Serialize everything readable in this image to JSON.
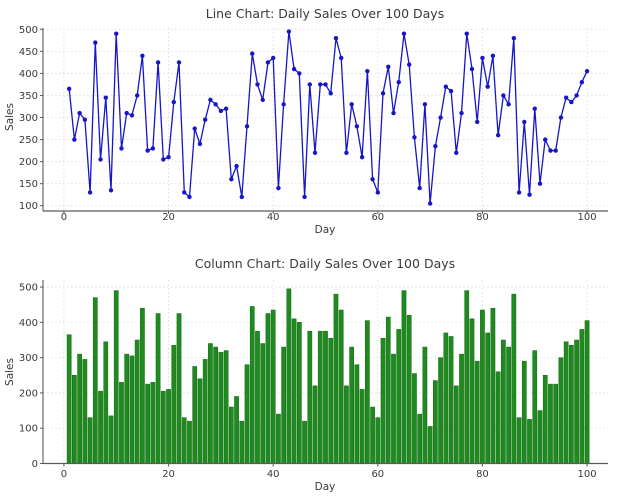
{
  "figure": {
    "background": "#ffffff",
    "text_color": "#3a3a3a",
    "grid_color": "#d9d9d9",
    "spine_color": "#5a5a5a"
  },
  "chart_data": [
    {
      "type": "line",
      "title": "Line Chart: Daily Sales Over 100 Days",
      "xlabel": "Day",
      "ylabel": "Sales",
      "series_color": "#1616c8",
      "marker": "circle",
      "grid": true,
      "legend": "none",
      "xticks": [
        0,
        20,
        40,
        60,
        80,
        100
      ],
      "yticks": [
        100,
        150,
        200,
        250,
        300,
        350,
        400,
        450,
        500
      ],
      "xlim": [
        -4,
        104
      ],
      "ylim": [
        88,
        503
      ],
      "x": [
        1,
        2,
        3,
        4,
        5,
        6,
        7,
        8,
        9,
        10,
        11,
        12,
        13,
        14,
        15,
        16,
        17,
        18,
        19,
        20,
        21,
        22,
        23,
        24,
        25,
        26,
        27,
        28,
        29,
        30,
        31,
        32,
        33,
        34,
        35,
        36,
        37,
        38,
        39,
        40,
        41,
        42,
        43,
        44,
        45,
        46,
        47,
        48,
        49,
        50,
        51,
        52,
        53,
        54,
        55,
        56,
        57,
        58,
        59,
        60,
        61,
        62,
        63,
        64,
        65,
        66,
        67,
        68,
        69,
        70,
        71,
        72,
        73,
        74,
        75,
        76,
        77,
        78,
        79,
        80,
        81,
        82,
        83,
        84,
        85,
        86,
        87,
        88,
        89,
        90,
        91,
        92,
        93,
        94,
        95,
        96,
        97,
        98,
        99,
        100
      ],
      "values": [
        365,
        250,
        310,
        295,
        130,
        470,
        205,
        345,
        135,
        490,
        230,
        310,
        305,
        350,
        440,
        225,
        230,
        425,
        205,
        210,
        335,
        425,
        130,
        120,
        275,
        240,
        295,
        340,
        330,
        315,
        320,
        160,
        190,
        120,
        280,
        445,
        375,
        340,
        425,
        435,
        140,
        330,
        495,
        410,
        400,
        120,
        375,
        220,
        375,
        375,
        355,
        480,
        435,
        220,
        330,
        280,
        210,
        405,
        160,
        130,
        355,
        415,
        310,
        380,
        490,
        420,
        255,
        140,
        330,
        105,
        235,
        300,
        370,
        360,
        220,
        310,
        490,
        410,
        290,
        435,
        370,
        440,
        260,
        350,
        330,
        480,
        130,
        290,
        125,
        320,
        150,
        250,
        225,
        225,
        300,
        345,
        335,
        350,
        380,
        405
      ]
    },
    {
      "type": "bar",
      "title": "Column Chart: Daily Sales Over 100 Days",
      "xlabel": "Day",
      "ylabel": "Sales",
      "series_color": "#1f8b1f",
      "bar_edge_color": "#156815",
      "grid": true,
      "legend": "none",
      "xticks": [
        0,
        20,
        40,
        60,
        80,
        100
      ],
      "yticks": [
        0,
        100,
        200,
        300,
        400,
        500
      ],
      "xlim": [
        -4,
        104
      ],
      "ylim": [
        0,
        520
      ],
      "x": [
        1,
        2,
        3,
        4,
        5,
        6,
        7,
        8,
        9,
        10,
        11,
        12,
        13,
        14,
        15,
        16,
        17,
        18,
        19,
        20,
        21,
        22,
        23,
        24,
        25,
        26,
        27,
        28,
        29,
        30,
        31,
        32,
        33,
        34,
        35,
        36,
        37,
        38,
        39,
        40,
        41,
        42,
        43,
        44,
        45,
        46,
        47,
        48,
        49,
        50,
        51,
        52,
        53,
        54,
        55,
        56,
        57,
        58,
        59,
        60,
        61,
        62,
        63,
        64,
        65,
        66,
        67,
        68,
        69,
        70,
        71,
        72,
        73,
        74,
        75,
        76,
        77,
        78,
        79,
        80,
        81,
        82,
        83,
        84,
        85,
        86,
        87,
        88,
        89,
        90,
        91,
        92,
        93,
        94,
        95,
        96,
        97,
        98,
        99,
        100
      ],
      "values": [
        365,
        250,
        310,
        295,
        130,
        470,
        205,
        345,
        135,
        490,
        230,
        310,
        305,
        350,
        440,
        225,
        230,
        425,
        205,
        210,
        335,
        425,
        130,
        120,
        275,
        240,
        295,
        340,
        330,
        315,
        320,
        160,
        190,
        120,
        280,
        445,
        375,
        340,
        425,
        435,
        140,
        330,
        495,
        410,
        400,
        120,
        375,
        220,
        375,
        375,
        355,
        480,
        435,
        220,
        330,
        280,
        210,
        405,
        160,
        130,
        355,
        415,
        310,
        380,
        490,
        420,
        255,
        140,
        330,
        105,
        235,
        300,
        370,
        360,
        220,
        310,
        490,
        410,
        290,
        435,
        370,
        440,
        260,
        350,
        330,
        480,
        130,
        290,
        125,
        320,
        150,
        250,
        225,
        225,
        300,
        345,
        335,
        350,
        380,
        405
      ]
    }
  ]
}
